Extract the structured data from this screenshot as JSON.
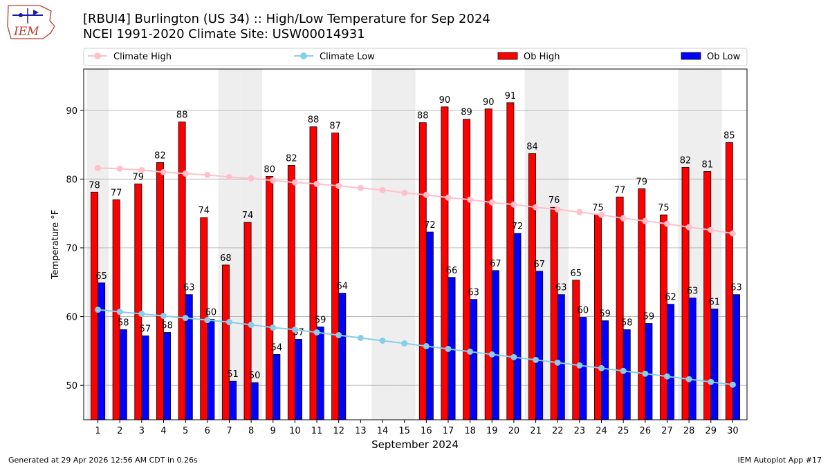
{
  "header": {
    "logo_text": "IEM",
    "title_line1": "[RBUI4] Burlington (US 34) :: High/Low Temperature for Sep 2024",
    "title_line2": "NCEI 1991-2020 Climate Site: USW00014931"
  },
  "footer": {
    "left": "Generated at 29 Apr 2026 12:56 AM CDT in 0.26s",
    "right": "IEM Autoplot App #17"
  },
  "colors": {
    "ob_high": "#ff0000",
    "ob_low": "#0000ff",
    "climate_high": "#ffc0cb",
    "climate_low": "#87ceeb",
    "weekend_shading": "#eeeeee",
    "grid": "#b0b0b0"
  },
  "chart_data": {
    "type": "bar",
    "xlabel": "September 2024",
    "ylabel": "Temperature °F",
    "ylim": [
      45,
      96
    ],
    "yticks": [
      50,
      60,
      70,
      80,
      90
    ],
    "grid": "y",
    "legend_placement": "top, above plot",
    "categories": [
      "1",
      "2",
      "3",
      "4",
      "5",
      "6",
      "7",
      "8",
      "9",
      "10",
      "11",
      "12",
      "13",
      "14",
      "15",
      "16",
      "17",
      "18",
      "19",
      "20",
      "21",
      "22",
      "23",
      "24",
      "25",
      "26",
      "27",
      "28",
      "29",
      "30"
    ],
    "shaded_days": [
      1,
      7,
      8,
      14,
      15,
      21,
      22,
      28,
      29
    ],
    "series": [
      {
        "name": "Ob High",
        "kind": "bar",
        "values": [
          78,
          77,
          79,
          82,
          88,
          74,
          68,
          74,
          80,
          82,
          88,
          87,
          null,
          null,
          null,
          88,
          90,
          89,
          90,
          91,
          84,
          76,
          65,
          75,
          77,
          79,
          75,
          82,
          81,
          85
        ],
        "heights": [
          78.1,
          77.0,
          79.3,
          82.4,
          88.3,
          74.4,
          67.5,
          73.7,
          80.4,
          82.0,
          87.6,
          86.7,
          null,
          null,
          null,
          88.2,
          90.5,
          88.7,
          90.2,
          91.1,
          83.7,
          75.9,
          65.3,
          74.8,
          77.4,
          78.6,
          74.8,
          81.7,
          81.1,
          85.3
        ]
      },
      {
        "name": "Ob Low",
        "kind": "bar",
        "values": [
          65,
          58,
          57,
          58,
          63,
          60,
          51,
          50,
          54,
          57,
          59,
          64,
          null,
          null,
          null,
          72,
          66,
          63,
          67,
          72,
          67,
          63,
          60,
          59,
          58,
          59,
          62,
          63,
          61,
          63
        ],
        "heights": [
          64.9,
          58.1,
          57.2,
          57.7,
          63.2,
          59.6,
          50.6,
          50.4,
          54.5,
          56.7,
          58.5,
          63.4,
          null,
          null,
          null,
          72.3,
          65.7,
          62.5,
          66.7,
          72.1,
          66.6,
          63.2,
          59.9,
          59.4,
          58.1,
          59.0,
          61.8,
          62.7,
          61.1,
          63.2
        ]
      },
      {
        "name": "Climate High",
        "kind": "line",
        "values": [
          81.6,
          81.5,
          81.3,
          81.0,
          80.8,
          80.6,
          80.3,
          80.1,
          79.8,
          79.5,
          79.3,
          79.0,
          78.7,
          78.4,
          78.0,
          77.7,
          77.3,
          77.0,
          76.6,
          76.3,
          75.9,
          75.6,
          75.2,
          74.8,
          74.3,
          73.9,
          73.5,
          73.0,
          72.6,
          72.1
        ]
      },
      {
        "name": "Climate Low",
        "kind": "line",
        "values": [
          61.0,
          60.7,
          60.4,
          60.1,
          59.8,
          59.5,
          59.2,
          58.8,
          58.4,
          58.1,
          57.7,
          57.3,
          56.9,
          56.5,
          56.1,
          55.7,
          55.3,
          54.9,
          54.5,
          54.1,
          53.7,
          53.3,
          52.9,
          52.5,
          52.1,
          51.7,
          51.3,
          50.9,
          50.5,
          50.1
        ]
      }
    ]
  }
}
